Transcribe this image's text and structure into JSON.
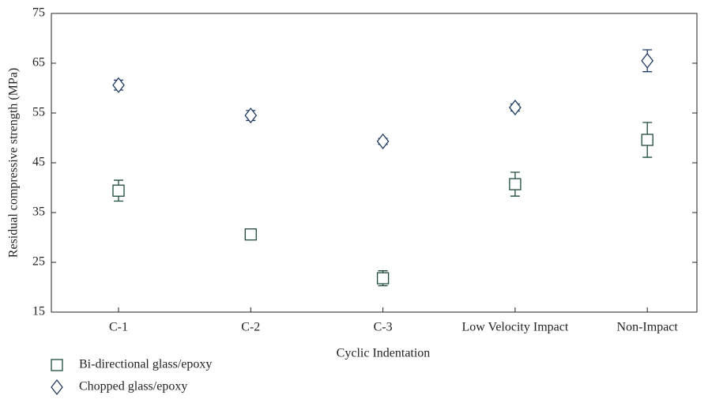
{
  "chart_data": {
    "type": "scatter",
    "x_label": "Cyclic Indentation",
    "y_label": "Residual compressive strength (MPa)",
    "categories": [
      "C-1",
      "C-2",
      "C-3",
      "Low Velocity Impact",
      "Non-Impact"
    ],
    "series": [
      {
        "name": "Bi-directional glass/epoxy",
        "color": "#1e4a3a",
        "marker": "square",
        "values": [
          39.4,
          30.6,
          21.8,
          40.7,
          49.6
        ],
        "errors": [
          2.1,
          1.0,
          1.5,
          2.4,
          3.5
        ]
      },
      {
        "name": "Chopped glass/epoxy",
        "color": "#1f3a60",
        "marker": "diamond",
        "values": [
          60.6,
          54.5,
          49.3,
          56.1,
          65.5
        ],
        "errors": [
          1.0,
          1.0,
          0.6,
          0.7,
          2.2
        ]
      }
    ],
    "ylim": [
      15,
      75
    ],
    "yticks": [
      15,
      25,
      35,
      45,
      55,
      65,
      75
    ],
    "legend": "bottom-left"
  }
}
